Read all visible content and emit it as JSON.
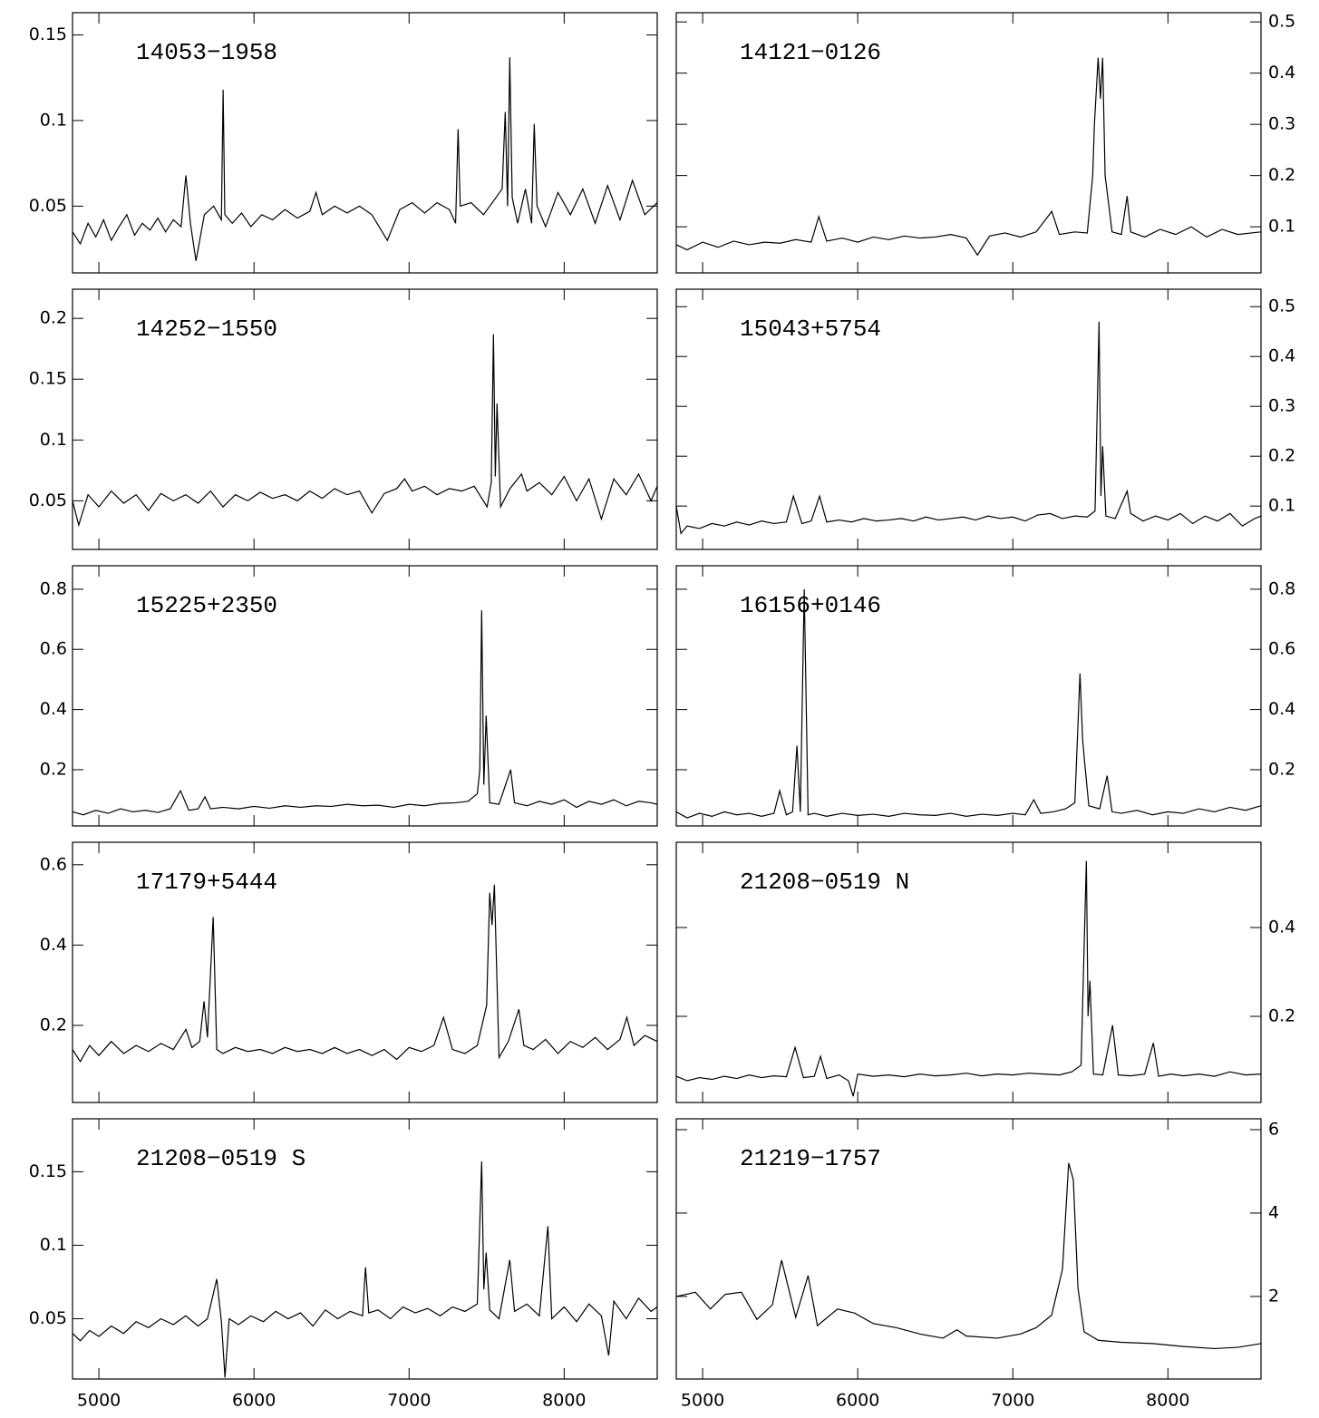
{
  "chart_data": [
    {
      "type": "line",
      "label": "14053−1958",
      "yaxis_side": "left",
      "show_xtick_labels": false,
      "color": "#000000",
      "xlim": [
        4830,
        8600
      ],
      "xticks": [
        5000,
        6000,
        7000,
        8000
      ],
      "ylim": [
        0.011,
        0.163
      ],
      "yticks": [
        0.05,
        0.1,
        0.15
      ],
      "x": [
        4830,
        4880,
        4930,
        4980,
        5030,
        5080,
        5130,
        5180,
        5230,
        5280,
        5330,
        5380,
        5430,
        5480,
        5530,
        5561,
        5590,
        5626,
        5680,
        5740,
        5790,
        5801,
        5812,
        5860,
        5920,
        5980,
        6050,
        6120,
        6200,
        6280,
        6360,
        6400,
        6440,
        6520,
        6600,
        6680,
        6760,
        6860,
        6940,
        7020,
        7100,
        7180,
        7260,
        7300,
        7316,
        7330,
        7400,
        7480,
        7560,
        7600,
        7620,
        7635,
        7649,
        7665,
        7700,
        7750,
        7790,
        7807,
        7825,
        7880,
        7960,
        8040,
        8120,
        8200,
        8280,
        8360,
        8440,
        8520,
        8600
      ],
      "values": [
        0.035,
        0.028,
        0.04,
        0.032,
        0.042,
        0.03,
        0.038,
        0.045,
        0.033,
        0.04,
        0.036,
        0.043,
        0.035,
        0.042,
        0.038,
        0.068,
        0.04,
        0.018,
        0.045,
        0.05,
        0.042,
        0.118,
        0.045,
        0.04,
        0.046,
        0.038,
        0.045,
        0.042,
        0.048,
        0.043,
        0.047,
        0.058,
        0.045,
        0.05,
        0.046,
        0.05,
        0.045,
        0.03,
        0.048,
        0.052,
        0.046,
        0.052,
        0.048,
        0.04,
        0.095,
        0.05,
        0.052,
        0.045,
        0.055,
        0.06,
        0.105,
        0.05,
        0.137,
        0.055,
        0.04,
        0.06,
        0.04,
        0.098,
        0.05,
        0.038,
        0.058,
        0.045,
        0.06,
        0.04,
        0.062,
        0.042,
        0.065,
        0.045,
        0.052
      ]
    },
    {
      "type": "line",
      "label": "14121−0126",
      "yaxis_side": "right",
      "show_xtick_labels": false,
      "color": "#000000",
      "xlim": [
        4830,
        8600
      ],
      "xticks": [
        5000,
        6000,
        7000,
        8000
      ],
      "ylim": [
        0.01,
        0.518
      ],
      "yticks": [
        0.1,
        0.2,
        0.3,
        0.4,
        0.5
      ],
      "x": [
        4830,
        4900,
        5000,
        5100,
        5200,
        5300,
        5400,
        5500,
        5600,
        5700,
        5749,
        5800,
        5900,
        6000,
        6100,
        6200,
        6300,
        6400,
        6500,
        6600,
        6700,
        6772,
        6850,
        6950,
        7050,
        7150,
        7251,
        7300,
        7400,
        7480,
        7515,
        7526,
        7550,
        7565,
        7579,
        7595,
        7640,
        7700,
        7737,
        7760,
        7850,
        7950,
        8050,
        8150,
        8250,
        8350,
        8450,
        8600
      ],
      "values": [
        0.065,
        0.055,
        0.07,
        0.06,
        0.072,
        0.065,
        0.07,
        0.068,
        0.075,
        0.07,
        0.12,
        0.072,
        0.078,
        0.07,
        0.08,
        0.075,
        0.082,
        0.078,
        0.08,
        0.085,
        0.078,
        0.045,
        0.082,
        0.088,
        0.08,
        0.09,
        0.13,
        0.085,
        0.09,
        0.088,
        0.2,
        0.3,
        0.43,
        0.35,
        0.43,
        0.2,
        0.09,
        0.085,
        0.16,
        0.09,
        0.08,
        0.095,
        0.085,
        0.1,
        0.08,
        0.095,
        0.085,
        0.09
      ]
    },
    {
      "type": "line",
      "label": "14252−1550",
      "yaxis_side": "left",
      "show_xtick_labels": false,
      "color": "#000000",
      "xlim": [
        4830,
        8600
      ],
      "xticks": [
        5000,
        6000,
        7000,
        8000
      ],
      "ylim": [
        0.01,
        0.224
      ],
      "yticks": [
        0.05,
        0.1,
        0.15,
        0.2
      ],
      "x": [
        4830,
        4870,
        4930,
        5000,
        5080,
        5160,
        5240,
        5320,
        5400,
        5480,
        5560,
        5640,
        5720,
        5800,
        5880,
        5960,
        6040,
        6120,
        6200,
        6280,
        6360,
        6440,
        6520,
        6600,
        6680,
        6760,
        6840,
        6920,
        6971,
        7020,
        7100,
        7180,
        7260,
        7340,
        7420,
        7503,
        7530,
        7544,
        7556,
        7567,
        7590,
        7650,
        7725,
        7760,
        7840,
        7920,
        8000,
        8080,
        8160,
        8240,
        8320,
        8400,
        8480,
        8560,
        8600
      ],
      "values": [
        0.05,
        0.03,
        0.055,
        0.045,
        0.058,
        0.048,
        0.055,
        0.042,
        0.056,
        0.05,
        0.055,
        0.048,
        0.058,
        0.045,
        0.055,
        0.05,
        0.057,
        0.052,
        0.055,
        0.05,
        0.058,
        0.052,
        0.06,
        0.055,
        0.058,
        0.04,
        0.056,
        0.06,
        0.068,
        0.058,
        0.062,
        0.055,
        0.06,
        0.058,
        0.062,
        0.045,
        0.065,
        0.187,
        0.07,
        0.13,
        0.045,
        0.06,
        0.072,
        0.058,
        0.065,
        0.055,
        0.07,
        0.05,
        0.068,
        0.035,
        0.068,
        0.055,
        0.072,
        0.05,
        0.062
      ]
    },
    {
      "type": "line",
      "label": "15043+5754",
      "yaxis_side": "right",
      "show_xtick_labels": false,
      "color": "#000000",
      "xlim": [
        4830,
        8600
      ],
      "xticks": [
        5000,
        6000,
        7000,
        8000
      ],
      "ylim": [
        0.013,
        0.535
      ],
      "yticks": [
        0.1,
        0.2,
        0.3,
        0.4,
        0.5
      ],
      "x": [
        4830,
        4860,
        4900,
        4980,
        5060,
        5140,
        5220,
        5300,
        5380,
        5460,
        5540,
        5585,
        5640,
        5700,
        5754,
        5800,
        5880,
        5960,
        6040,
        6120,
        6200,
        6280,
        6360,
        6440,
        6520,
        6600,
        6680,
        6760,
        6840,
        6920,
        7000,
        7080,
        7160,
        7240,
        7320,
        7400,
        7480,
        7530,
        7556,
        7568,
        7579,
        7600,
        7660,
        7737,
        7760,
        7840,
        7920,
        8000,
        8080,
        8160,
        8240,
        8320,
        8400,
        8480,
        8560,
        8600
      ],
      "values": [
        0.1,
        0.045,
        0.06,
        0.055,
        0.065,
        0.06,
        0.068,
        0.062,
        0.07,
        0.065,
        0.068,
        0.12,
        0.065,
        0.07,
        0.12,
        0.068,
        0.072,
        0.068,
        0.075,
        0.07,
        0.072,
        0.075,
        0.07,
        0.078,
        0.072,
        0.075,
        0.078,
        0.072,
        0.08,
        0.075,
        0.078,
        0.07,
        0.082,
        0.085,
        0.075,
        0.08,
        0.078,
        0.09,
        0.47,
        0.12,
        0.22,
        0.08,
        0.075,
        0.13,
        0.085,
        0.07,
        0.08,
        0.072,
        0.085,
        0.065,
        0.08,
        0.07,
        0.085,
        0.06,
        0.075,
        0.08
      ]
    },
    {
      "type": "line",
      "label": "15225+2350",
      "yaxis_side": "left",
      "show_xtick_labels": false,
      "color": "#000000",
      "xlim": [
        4830,
        8600
      ],
      "xticks": [
        5000,
        6000,
        7000,
        8000
      ],
      "ylim": [
        0.013,
        0.878
      ],
      "yticks": [
        0.2,
        0.4,
        0.6,
        0.8
      ],
      "x": [
        4830,
        4900,
        4980,
        5060,
        5140,
        5220,
        5300,
        5380,
        5460,
        5526,
        5580,
        5640,
        5684,
        5720,
        5800,
        5900,
        6000,
        6100,
        6200,
        6300,
        6400,
        6500,
        6600,
        6700,
        6800,
        6900,
        7000,
        7100,
        7200,
        7300,
        7380,
        7440,
        7456,
        7468,
        7482,
        7497,
        7520,
        7580,
        7655,
        7680,
        7760,
        7840,
        7920,
        8000,
        8080,
        8160,
        8240,
        8320,
        8400,
        8480,
        8560,
        8600
      ],
      "values": [
        0.06,
        0.05,
        0.065,
        0.055,
        0.07,
        0.06,
        0.065,
        0.058,
        0.07,
        0.13,
        0.065,
        0.07,
        0.11,
        0.07,
        0.075,
        0.07,
        0.078,
        0.072,
        0.08,
        0.075,
        0.08,
        0.078,
        0.085,
        0.08,
        0.082,
        0.075,
        0.085,
        0.08,
        0.088,
        0.09,
        0.095,
        0.12,
        0.2,
        0.73,
        0.15,
        0.38,
        0.09,
        0.085,
        0.2,
        0.09,
        0.08,
        0.095,
        0.085,
        0.1,
        0.075,
        0.095,
        0.085,
        0.1,
        0.08,
        0.095,
        0.09,
        0.085
      ]
    },
    {
      "type": "line",
      "label": "16156+0146",
      "yaxis_side": "right",
      "show_xtick_labels": false,
      "color": "#000000",
      "xlim": [
        4830,
        8600
      ],
      "xticks": [
        5000,
        6000,
        7000,
        8000
      ],
      "ylim": [
        0.013,
        0.878
      ],
      "yticks": [
        0.2,
        0.4,
        0.6,
        0.8
      ],
      "x": [
        4830,
        4900,
        4980,
        5060,
        5140,
        5220,
        5300,
        5380,
        5460,
        5497,
        5540,
        5580,
        5608,
        5630,
        5655,
        5680,
        5720,
        5800,
        5900,
        6000,
        6100,
        6200,
        6300,
        6400,
        6500,
        6600,
        6700,
        6800,
        6900,
        7000,
        7080,
        7135,
        7180,
        7260,
        7340,
        7400,
        7433,
        7450,
        7462,
        7490,
        7560,
        7608,
        7640,
        7700,
        7800,
        7900,
        8000,
        8100,
        8200,
        8300,
        8400,
        8500,
        8600
      ],
      "values": [
        0.06,
        0.04,
        0.055,
        0.045,
        0.06,
        0.05,
        0.055,
        0.045,
        0.055,
        0.13,
        0.05,
        0.06,
        0.28,
        0.06,
        0.8,
        0.05,
        0.055,
        0.045,
        0.055,
        0.048,
        0.052,
        0.045,
        0.055,
        0.05,
        0.048,
        0.055,
        0.045,
        0.052,
        0.048,
        0.055,
        0.05,
        0.1,
        0.055,
        0.06,
        0.07,
        0.09,
        0.52,
        0.3,
        0.23,
        0.08,
        0.07,
        0.18,
        0.06,
        0.055,
        0.065,
        0.05,
        0.06,
        0.055,
        0.07,
        0.06,
        0.075,
        0.065,
        0.08
      ]
    },
    {
      "type": "line",
      "label": "17179+5444",
      "yaxis_side": "left",
      "show_xtick_labels": false,
      "color": "#000000",
      "xlim": [
        4830,
        8600
      ],
      "xticks": [
        5000,
        6000,
        7000,
        8000
      ],
      "ylim": [
        0.008,
        0.656
      ],
      "yticks": [
        0.2,
        0.4,
        0.6
      ],
      "x": [
        4830,
        4880,
        4940,
        5000,
        5080,
        5160,
        5240,
        5320,
        5400,
        5480,
        5561,
        5600,
        5650,
        5678,
        5700,
        5737,
        5760,
        5800,
        5880,
        5960,
        6040,
        6120,
        6200,
        6280,
        6360,
        6440,
        6520,
        6600,
        6680,
        6760,
        6840,
        6920,
        7000,
        7080,
        7160,
        7222,
        7280,
        7360,
        7440,
        7500,
        7520,
        7535,
        7550,
        7580,
        7640,
        7708,
        7740,
        7800,
        7880,
        7960,
        8040,
        8120,
        8200,
        8280,
        8360,
        8404,
        8450,
        8520,
        8600
      ],
      "values": [
        0.14,
        0.11,
        0.15,
        0.125,
        0.16,
        0.13,
        0.15,
        0.135,
        0.155,
        0.14,
        0.19,
        0.145,
        0.16,
        0.26,
        0.17,
        0.47,
        0.14,
        0.13,
        0.145,
        0.135,
        0.14,
        0.13,
        0.145,
        0.135,
        0.14,
        0.13,
        0.145,
        0.13,
        0.14,
        0.125,
        0.14,
        0.115,
        0.145,
        0.135,
        0.15,
        0.22,
        0.14,
        0.13,
        0.15,
        0.25,
        0.53,
        0.45,
        0.55,
        0.12,
        0.16,
        0.24,
        0.15,
        0.14,
        0.165,
        0.13,
        0.16,
        0.145,
        0.17,
        0.14,
        0.165,
        0.22,
        0.15,
        0.175,
        0.16
      ]
    },
    {
      "type": "line",
      "label": "21208−0519 N",
      "yaxis_side": "right",
      "show_xtick_labels": false,
      "color": "#000000",
      "xlim": [
        4830,
        8600
      ],
      "xticks": [
        5000,
        6000,
        7000,
        8000
      ],
      "ylim": [
        0.006,
        0.592
      ],
      "yticks": [
        0.2,
        0.4
      ],
      "x": [
        4830,
        4900,
        4980,
        5060,
        5140,
        5220,
        5300,
        5380,
        5460,
        5540,
        5596,
        5650,
        5720,
        5760,
        5800,
        5880,
        5940,
        5971,
        6000,
        6100,
        6200,
        6300,
        6400,
        6500,
        6600,
        6700,
        6800,
        6900,
        7000,
        7100,
        7200,
        7300,
        7380,
        7440,
        7474,
        7485,
        7497,
        7520,
        7580,
        7643,
        7680,
        7760,
        7850,
        7906,
        7940,
        8020,
        8100,
        8200,
        8300,
        8400,
        8500,
        8600
      ],
      "values": [
        0.065,
        0.055,
        0.062,
        0.058,
        0.065,
        0.06,
        0.068,
        0.062,
        0.066,
        0.064,
        0.13,
        0.062,
        0.065,
        0.11,
        0.06,
        0.068,
        0.055,
        0.02,
        0.07,
        0.065,
        0.068,
        0.064,
        0.07,
        0.066,
        0.068,
        0.072,
        0.066,
        0.07,
        0.068,
        0.072,
        0.07,
        0.068,
        0.075,
        0.09,
        0.55,
        0.2,
        0.28,
        0.07,
        0.068,
        0.18,
        0.068,
        0.066,
        0.07,
        0.14,
        0.065,
        0.07,
        0.066,
        0.07,
        0.065,
        0.075,
        0.068,
        0.07
      ]
    },
    {
      "type": "line",
      "label": "21208−0519 S",
      "yaxis_side": "left",
      "show_xtick_labels": true,
      "color": "#000000",
      "xlim": [
        4830,
        8600
      ],
      "xticks": [
        5000,
        6000,
        7000,
        8000
      ],
      "ylim": [
        0.009,
        0.186
      ],
      "yticks": [
        0.05,
        0.1,
        0.15
      ],
      "x": [
        4830,
        4880,
        4940,
        5000,
        5080,
        5160,
        5240,
        5320,
        5400,
        5480,
        5560,
        5640,
        5700,
        5760,
        5790,
        5813,
        5840,
        5900,
        5980,
        6060,
        6140,
        6220,
        6300,
        6380,
        6460,
        6540,
        6620,
        6700,
        6719,
        6740,
        6800,
        6880,
        6960,
        7040,
        7120,
        7200,
        7280,
        7360,
        7440,
        7468,
        7482,
        7497,
        7520,
        7580,
        7649,
        7680,
        7760,
        7840,
        7895,
        7920,
        8000,
        8080,
        8160,
        8240,
        8287,
        8320,
        8400,
        8480,
        8560,
        8600
      ],
      "values": [
        0.04,
        0.035,
        0.042,
        0.038,
        0.045,
        0.04,
        0.048,
        0.044,
        0.05,
        0.046,
        0.052,
        0.045,
        0.05,
        0.077,
        0.048,
        0.01,
        0.05,
        0.046,
        0.052,
        0.048,
        0.055,
        0.05,
        0.054,
        0.045,
        0.056,
        0.05,
        0.055,
        0.052,
        0.085,
        0.054,
        0.056,
        0.05,
        0.058,
        0.054,
        0.057,
        0.052,
        0.058,
        0.055,
        0.06,
        0.157,
        0.07,
        0.095,
        0.056,
        0.05,
        0.09,
        0.055,
        0.06,
        0.052,
        0.113,
        0.05,
        0.058,
        0.048,
        0.06,
        0.052,
        0.025,
        0.062,
        0.05,
        0.064,
        0.055,
        0.058
      ]
    },
    {
      "type": "line",
      "label": "21219−1757",
      "yaxis_side": "right",
      "show_xtick_labels": true,
      "color": "#000000",
      "xlim": [
        4830,
        8600
      ],
      "xticks": [
        5000,
        6000,
        7000,
        8000
      ],
      "ylim": [
        0.02,
        6.26
      ],
      "yticks": [
        2,
        4,
        6
      ],
      "x": [
        4830,
        4953,
        5050,
        5146,
        5250,
        5350,
        5450,
        5509,
        5600,
        5680,
        5740,
        5870,
        5980,
        6100,
        6250,
        6400,
        6550,
        6640,
        6700,
        6900,
        7050,
        7150,
        7250,
        7320,
        7360,
        7390,
        7420,
        7460,
        7550,
        7700,
        7900,
        8100,
        8300,
        8450,
        8600
      ],
      "values": [
        2.0,
        2.1,
        1.7,
        2.05,
        2.1,
        1.45,
        1.8,
        2.87,
        1.5,
        2.5,
        1.3,
        1.7,
        1.6,
        1.35,
        1.25,
        1.1,
        1.0,
        1.2,
        1.05,
        1.0,
        1.1,
        1.25,
        1.55,
        2.65,
        5.2,
        4.8,
        2.2,
        1.15,
        0.95,
        0.9,
        0.87,
        0.8,
        0.75,
        0.78,
        0.87
      ]
    }
  ]
}
